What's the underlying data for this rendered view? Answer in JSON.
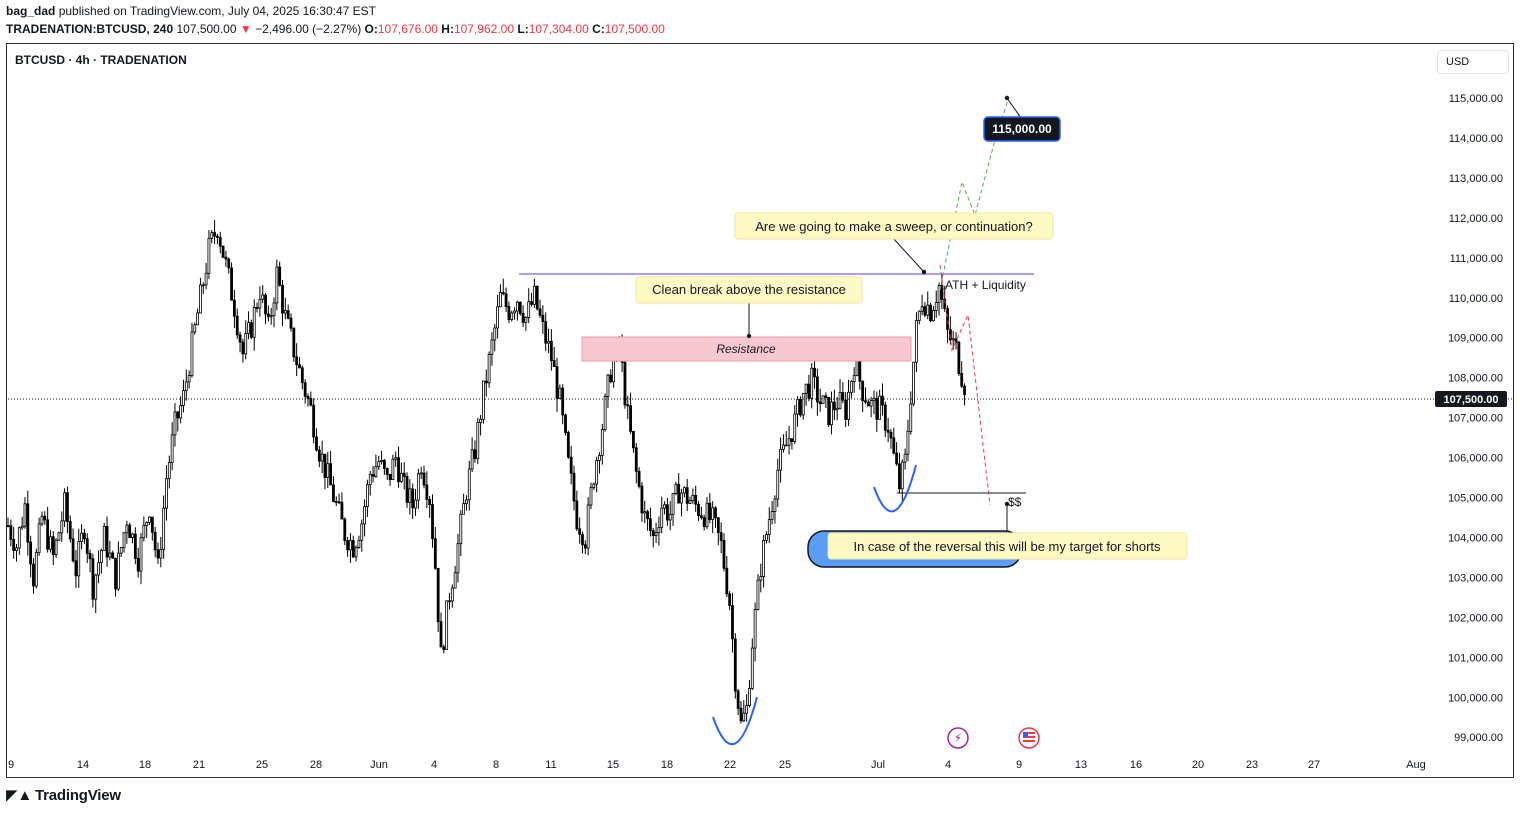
{
  "header": {
    "author": "bag_dad",
    "published_text": "published on TradingView.com, July 04, 2025 16:30:47 EST",
    "symbol_line": "TRADENATION:BTCUSD, 240",
    "last_price": "107,500.00",
    "change_arrow": "▼",
    "change": "−2,496.00 (−2.27%)",
    "o_label": "O:",
    "o": "107,676.00",
    "h_label": "H:",
    "h": "107,962.00",
    "l_label": "L:",
    "l": "107,304.00",
    "c_label": "C:",
    "c": "107,500.00"
  },
  "legend": "BTCUSD · 4h · TRADENATION",
  "currency_button": "USD",
  "brand": "TradingView",
  "colors": {
    "up": "#089981",
    "down": "#f23645",
    "candle": "#000000",
    "accent": "#2962ff"
  },
  "chart_data": {
    "type": "candlestick",
    "y_axis": {
      "min": 98500,
      "max": 116000,
      "ticks": [
        115000,
        114000,
        113000,
        112000,
        111000,
        110000,
        109000,
        108000,
        107000,
        106000,
        105000,
        104000,
        103000,
        102000,
        101000,
        100000,
        99000
      ],
      "tick_labels": [
        "115,000.00",
        "114,000.00",
        "113,000.00",
        "112,000.00",
        "111,000.00",
        "110,000.00",
        "109,000.00",
        "108,000.00",
        "107,000.00",
        "106,000.00",
        "105,000.00",
        "104,000.00",
        "103,000.00",
        "102,000.00",
        "101,000.00",
        "100,000.00",
        "99,000.00"
      ]
    },
    "x_axis": {
      "labels": [
        "9",
        "14",
        "18",
        "21",
        "25",
        "28",
        "Jun",
        "4",
        "8",
        "11",
        "15",
        "18",
        "22",
        "25",
        "Jul",
        "4",
        "9",
        "13",
        "16",
        "20",
        "23",
        "27",
        "Aug"
      ]
    },
    "current_price": {
      "value": 107500,
      "label": "107,500.00"
    },
    "grid": false,
    "approx_path": [
      [
        0,
        104300
      ],
      [
        3,
        103800
      ],
      [
        6,
        104800
      ],
      [
        9,
        103000
      ],
      [
        12,
        104500
      ],
      [
        16,
        103500
      ],
      [
        20,
        104800
      ],
      [
        24,
        103200
      ],
      [
        27,
        104300
      ],
      [
        30,
        102800
      ],
      [
        34,
        104000
      ],
      [
        38,
        103000
      ],
      [
        42,
        104500
      ],
      [
        46,
        103500
      ],
      [
        50,
        104800
      ],
      [
        53,
        103200
      ],
      [
        56,
        105500
      ],
      [
        59,
        106800
      ],
      [
        62,
        107500
      ],
      [
        65,
        108800
      ],
      [
        68,
        110000
      ],
      [
        71,
        111200
      ],
      [
        74,
        111800
      ],
      [
        77,
        110800
      ],
      [
        80,
        109800
      ],
      [
        83,
        108600
      ],
      [
        86,
        109300
      ],
      [
        89,
        110200
      ],
      [
        92,
        109200
      ],
      [
        95,
        110600
      ],
      [
        98,
        109500
      ],
      [
        101,
        108700
      ],
      [
        104,
        107900
      ],
      [
        107,
        107200
      ],
      [
        110,
        106200
      ],
      [
        113,
        105500
      ],
      [
        116,
        104800
      ],
      [
        119,
        104100
      ],
      [
        122,
        103800
      ],
      [
        125,
        104400
      ],
      [
        128,
        105600
      ],
      [
        131,
        105900
      ],
      [
        134,
        105400
      ],
      [
        137,
        106000
      ],
      [
        140,
        105200
      ],
      [
        143,
        104800
      ],
      [
        146,
        105900
      ],
      [
        149,
        105000
      ],
      [
        151,
        103300
      ],
      [
        153,
        101000
      ],
      [
        156,
        102600
      ],
      [
        159,
        103800
      ],
      [
        162,
        105200
      ],
      [
        165,
        106200
      ],
      [
        168,
        107600
      ],
      [
        171,
        108800
      ],
      [
        174,
        110000
      ],
      [
        177,
        109700
      ],
      [
        180,
        110000
      ],
      [
        183,
        109500
      ],
      [
        186,
        110000
      ],
      [
        189,
        109200
      ],
      [
        192,
        108500
      ],
      [
        195,
        107400
      ],
      [
        198,
        105800
      ],
      [
        201,
        104500
      ],
      [
        204,
        104000
      ],
      [
        207,
        105600
      ],
      [
        210,
        106800
      ],
      [
        213,
        108200
      ],
      [
        216,
        108800
      ],
      [
        219,
        107000
      ],
      [
        222,
        105600
      ],
      [
        225,
        104500
      ],
      [
        228,
        104000
      ],
      [
        231,
        104800
      ],
      [
        234,
        104600
      ],
      [
        237,
        105200
      ],
      [
        240,
        105000
      ],
      [
        243,
        104800
      ],
      [
        246,
        104600
      ],
      [
        249,
        104400
      ],
      [
        252,
        103800
      ],
      [
        255,
        102400
      ],
      [
        257,
        100500
      ],
      [
        259,
        99300
      ],
      [
        261,
        99700
      ],
      [
        263,
        101400
      ],
      [
        266,
        103300
      ],
      [
        269,
        104500
      ],
      [
        272,
        105700
      ],
      [
        275,
        106300
      ],
      [
        278,
        106900
      ],
      [
        281,
        107600
      ],
      [
        284,
        107900
      ],
      [
        287,
        107400
      ],
      [
        290,
        107100
      ],
      [
        293,
        107400
      ],
      [
        296,
        107200
      ],
      [
        299,
        108400
      ],
      [
        302,
        107700
      ],
      [
        305,
        107300
      ],
      [
        308,
        107200
      ],
      [
        311,
        106800
      ],
      [
        313,
        106000
      ],
      [
        315,
        105300
      ],
      [
        317,
        105900
      ],
      [
        319,
        107600
      ],
      [
        321,
        109200
      ],
      [
        323,
        110000
      ],
      [
        326,
        109700
      ],
      [
        329,
        110300
      ],
      [
        332,
        109100
      ],
      [
        335,
        108700
      ],
      [
        337,
        108100
      ],
      [
        339,
        107600
      ]
    ],
    "annotations": [
      {
        "kind": "callout",
        "text": "Are we going to make a sweep, or continuation?",
        "color": "#fff9c4"
      },
      {
        "kind": "callout",
        "text": "Clean break above the resistance",
        "color": "#fff9c4"
      },
      {
        "kind": "zone",
        "text": "Resistance",
        "y_range": [
          108400,
          109000
        ],
        "color": "#f8c8d0"
      },
      {
        "kind": "line",
        "text": "ATH + Liquidity",
        "y": 110600,
        "color": "#7b61ff"
      },
      {
        "kind": "target",
        "text": "115,000.00",
        "y": 115000
      },
      {
        "kind": "level",
        "text": "$$",
        "y": 105100
      },
      {
        "kind": "callout",
        "text": "In case of the reversal this will be my target for shorts",
        "color": "#fff9c4"
      }
    ]
  }
}
